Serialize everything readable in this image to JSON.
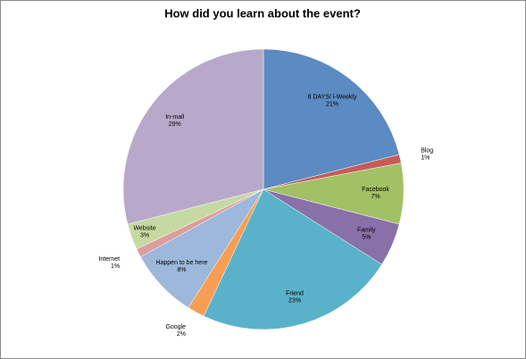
{
  "chart_data": {
    "type": "pie",
    "title": "How did you learn about the event?",
    "categories": [
      "8 DAYS/ i-Weekly",
      "Blog",
      "Facebook",
      "Family",
      "Friend",
      "Google",
      "Happen to be here",
      "Internet",
      "Website",
      "In-mall"
    ],
    "values": [
      21,
      1,
      7,
      5,
      23,
      2,
      8,
      1,
      3,
      29
    ],
    "value_labels": [
      "21%",
      "1%",
      "7%",
      "5%",
      "23%",
      "2%",
      "8%",
      "1%",
      "3%",
      "29%"
    ],
    "colors": [
      "#4f81bd",
      "#c0504d",
      "#9bbb59",
      "#8064a2",
      "#4bacc6",
      "#f79646",
      "#95b3d7",
      "#d99694",
      "#c3d69b",
      "#b3a2c7"
    ]
  }
}
